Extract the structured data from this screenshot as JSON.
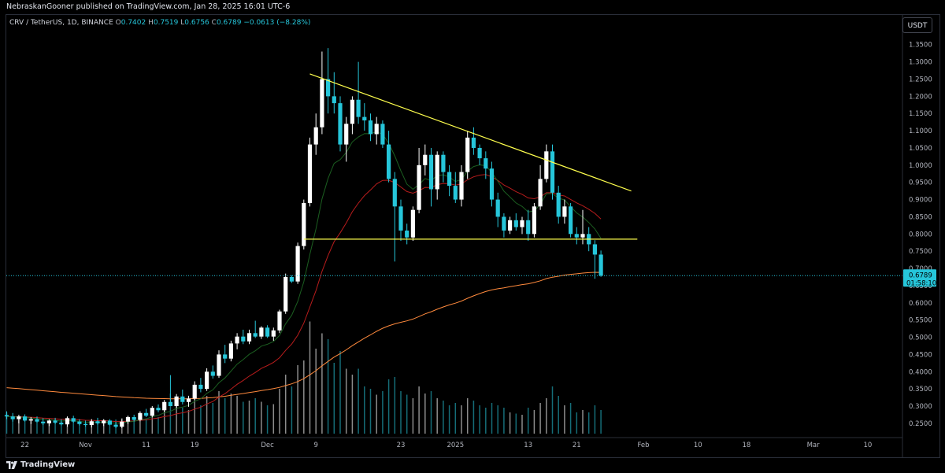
{
  "header": {
    "publish_text": "NebraskanGooner published on TradingView.com, Jan 28, 2025 16:01 UTC-6"
  },
  "symbol": {
    "name": "CRV / TetherUS, 1D, BINANCE",
    "o_label": "O",
    "o_value": "0.7402",
    "h_label": "H",
    "h_value": "0.7519",
    "l_label": "L",
    "l_value": "0.6756",
    "c_label": "C",
    "c_value": "0.6789",
    "change": "−0.0613 (−8.28%)"
  },
  "currency_button": "USDT",
  "brand": {
    "name": "TradingView",
    "icon": "tradingview-logo-icon"
  },
  "colors": {
    "up": "#ffffff",
    "down": "#26c6da",
    "trendline": "#ffff4d",
    "ema_green": "#1b5e20",
    "ema_red": "#b71c1c",
    "ma_orange": "#ff8a3d",
    "price_tag": "#26c6da"
  },
  "chart_data": {
    "type": "candlestick",
    "ylim": [
      0.22,
      1.37
    ],
    "y_ticks": [
      "1.3500",
      "1.3000",
      "1.2500",
      "1.2000",
      "1.1500",
      "1.1000",
      "1.0500",
      "1.0000",
      "0.9500",
      "0.9000",
      "0.8500",
      "0.8000",
      "0.7500",
      "0.7000",
      "0.6500",
      "0.6000",
      "0.5500",
      "0.5000",
      "0.4500",
      "0.4000",
      "0.3500",
      "0.3000",
      "0.2500"
    ],
    "y_tick_values": [
      1.35,
      1.3,
      1.25,
      1.2,
      1.15,
      1.1,
      1.05,
      1.0,
      0.95,
      0.9,
      0.85,
      0.8,
      0.75,
      0.7,
      0.65,
      0.6,
      0.55,
      0.5,
      0.45,
      0.4,
      0.35,
      0.3,
      0.25
    ],
    "x_ticks": [
      {
        "label": "22",
        "day": -9
      },
      {
        "label": "Nov",
        "day": 1
      },
      {
        "label": "11",
        "day": 11
      },
      {
        "label": "19",
        "day": 19
      },
      {
        "label": "Dec",
        "day": 31
      },
      {
        "label": "9",
        "day": 39
      },
      {
        "label": "23",
        "day": 53
      },
      {
        "label": "2025",
        "day": 62
      },
      {
        "label": "13",
        "day": 74
      },
      {
        "label": "21",
        "day": 82
      },
      {
        "label": "Feb",
        "day": 93
      },
      {
        "label": "10",
        "day": 102
      },
      {
        "label": "18",
        "day": 110
      },
      {
        "label": "Mar",
        "day": 121
      },
      {
        "label": "10",
        "day": 130
      }
    ],
    "last_price": {
      "label": "0.6789",
      "value": 0.6789,
      "countdown": "01:58:10"
    },
    "candles": [
      {
        "o": 0.274,
        "h": 0.285,
        "l": 0.262,
        "c": 0.27,
        "v": 0.18
      },
      {
        "o": 0.27,
        "h": 0.28,
        "l": 0.255,
        "c": 0.262,
        "v": 0.15
      },
      {
        "o": 0.262,
        "h": 0.275,
        "l": 0.25,
        "c": 0.27,
        "v": 0.12
      },
      {
        "o": 0.27,
        "h": 0.276,
        "l": 0.255,
        "c": 0.258,
        "v": 0.14
      },
      {
        "o": 0.258,
        "h": 0.268,
        "l": 0.248,
        "c": 0.262,
        "v": 0.11
      },
      {
        "o": 0.262,
        "h": 0.27,
        "l": 0.252,
        "c": 0.255,
        "v": 0.12
      },
      {
        "o": 0.255,
        "h": 0.265,
        "l": 0.245,
        "c": 0.25,
        "v": 0.1
      },
      {
        "o": 0.25,
        "h": 0.262,
        "l": 0.242,
        "c": 0.258,
        "v": 0.11
      },
      {
        "o": 0.258,
        "h": 0.266,
        "l": 0.248,
        "c": 0.252,
        "v": 0.12
      },
      {
        "o": 0.252,
        "h": 0.262,
        "l": 0.244,
        "c": 0.247,
        "v": 0.1
      },
      {
        "o": 0.247,
        "h": 0.27,
        "l": 0.24,
        "c": 0.265,
        "v": 0.14
      },
      {
        "o": 0.265,
        "h": 0.272,
        "l": 0.252,
        "c": 0.255,
        "v": 0.12
      },
      {
        "o": 0.255,
        "h": 0.262,
        "l": 0.244,
        "c": 0.248,
        "v": 0.11
      },
      {
        "o": 0.248,
        "h": 0.258,
        "l": 0.24,
        "c": 0.245,
        "v": 0.1
      },
      {
        "o": 0.245,
        "h": 0.262,
        "l": 0.238,
        "c": 0.256,
        "v": 0.12
      },
      {
        "o": 0.256,
        "h": 0.266,
        "l": 0.246,
        "c": 0.25,
        "v": 0.11
      },
      {
        "o": 0.25,
        "h": 0.262,
        "l": 0.242,
        "c": 0.258,
        "v": 0.12
      },
      {
        "o": 0.258,
        "h": 0.262,
        "l": 0.244,
        "c": 0.246,
        "v": 0.11
      },
      {
        "o": 0.246,
        "h": 0.254,
        "l": 0.236,
        "c": 0.24,
        "v": 0.12
      },
      {
        "o": 0.24,
        "h": 0.262,
        "l": 0.236,
        "c": 0.255,
        "v": 0.13
      },
      {
        "o": 0.255,
        "h": 0.272,
        "l": 0.248,
        "c": 0.268,
        "v": 0.15
      },
      {
        "o": 0.268,
        "h": 0.275,
        "l": 0.255,
        "c": 0.26,
        "v": 0.12
      },
      {
        "o": 0.26,
        "h": 0.285,
        "l": 0.256,
        "c": 0.28,
        "v": 0.16
      },
      {
        "o": 0.28,
        "h": 0.292,
        "l": 0.268,
        "c": 0.272,
        "v": 0.13
      },
      {
        "o": 0.272,
        "h": 0.3,
        "l": 0.268,
        "c": 0.295,
        "v": 0.18
      },
      {
        "o": 0.295,
        "h": 0.305,
        "l": 0.282,
        "c": 0.288,
        "v": 0.14
      },
      {
        "o": 0.288,
        "h": 0.318,
        "l": 0.282,
        "c": 0.312,
        "v": 0.2
      },
      {
        "o": 0.312,
        "h": 0.39,
        "l": 0.3,
        "c": 0.3,
        "v": 0.34
      },
      {
        "o": 0.3,
        "h": 0.335,
        "l": 0.294,
        "c": 0.328,
        "v": 0.26
      },
      {
        "o": 0.328,
        "h": 0.348,
        "l": 0.305,
        "c": 0.312,
        "v": 0.22
      },
      {
        "o": 0.312,
        "h": 0.33,
        "l": 0.298,
        "c": 0.322,
        "v": 0.2
      },
      {
        "o": 0.322,
        "h": 0.372,
        "l": 0.318,
        "c": 0.362,
        "v": 0.3
      },
      {
        "o": 0.362,
        "h": 0.382,
        "l": 0.34,
        "c": 0.35,
        "v": 0.24
      },
      {
        "o": 0.35,
        "h": 0.41,
        "l": 0.344,
        "c": 0.4,
        "v": 0.32
      },
      {
        "o": 0.4,
        "h": 0.418,
        "l": 0.38,
        "c": 0.388,
        "v": 0.26
      },
      {
        "o": 0.388,
        "h": 0.462,
        "l": 0.382,
        "c": 0.45,
        "v": 0.36
      },
      {
        "o": 0.45,
        "h": 0.478,
        "l": 0.425,
        "c": 0.438,
        "v": 0.3
      },
      {
        "o": 0.438,
        "h": 0.49,
        "l": 0.43,
        "c": 0.482,
        "v": 0.34
      },
      {
        "o": 0.482,
        "h": 0.512,
        "l": 0.465,
        "c": 0.502,
        "v": 0.32
      },
      {
        "o": 0.502,
        "h": 0.522,
        "l": 0.48,
        "c": 0.488,
        "v": 0.27
      },
      {
        "o": 0.488,
        "h": 0.522,
        "l": 0.48,
        "c": 0.512,
        "v": 0.28
      },
      {
        "o": 0.512,
        "h": 0.548,
        "l": 0.498,
        "c": 0.502,
        "v": 0.3
      },
      {
        "o": 0.502,
        "h": 0.532,
        "l": 0.495,
        "c": 0.528,
        "v": 0.27
      },
      {
        "o": 0.528,
        "h": 0.535,
        "l": 0.498,
        "c": 0.502,
        "v": 0.24
      },
      {
        "o": 0.502,
        "h": 0.528,
        "l": 0.49,
        "c": 0.52,
        "v": 0.25
      },
      {
        "o": 0.52,
        "h": 0.58,
        "l": 0.512,
        "c": 0.575,
        "v": 0.38
      },
      {
        "o": 0.575,
        "h": 0.685,
        "l": 0.568,
        "c": 0.675,
        "v": 0.5
      },
      {
        "o": 0.675,
        "h": 0.68,
        "l": 0.658,
        "c": 0.662,
        "v": 0.4
      },
      {
        "o": 0.662,
        "h": 0.775,
        "l": 0.655,
        "c": 0.765,
        "v": 0.58
      },
      {
        "o": 0.765,
        "h": 0.9,
        "l": 0.755,
        "c": 0.89,
        "v": 0.62
      },
      {
        "o": 0.89,
        "h": 1.08,
        "l": 0.88,
        "c": 1.06,
        "v": 0.95
      },
      {
        "o": 1.06,
        "h": 1.15,
        "l": 1.03,
        "c": 1.11,
        "v": 0.72
      },
      {
        "o": 1.11,
        "h": 1.33,
        "l": 1.09,
        "c": 1.25,
        "v": 0.85
      },
      {
        "o": 1.25,
        "h": 1.34,
        "l": 1.15,
        "c": 1.2,
        "v": 0.8
      },
      {
        "o": 1.2,
        "h": 1.27,
        "l": 1.15,
        "c": 1.18,
        "v": 0.6
      },
      {
        "o": 1.18,
        "h": 1.2,
        "l": 1.04,
        "c": 1.06,
        "v": 0.7
      },
      {
        "o": 1.06,
        "h": 1.14,
        "l": 1.01,
        "c": 1.12,
        "v": 0.55
      },
      {
        "o": 1.12,
        "h": 1.2,
        "l": 1.09,
        "c": 1.19,
        "v": 0.5
      },
      {
        "o": 1.19,
        "h": 1.3,
        "l": 1.12,
        "c": 1.14,
        "v": 0.55
      },
      {
        "o": 1.14,
        "h": 1.18,
        "l": 1.1,
        "c": 1.13,
        "v": 0.4
      },
      {
        "o": 1.13,
        "h": 1.15,
        "l": 1.07,
        "c": 1.09,
        "v": 0.38
      },
      {
        "o": 1.09,
        "h": 1.14,
        "l": 1.06,
        "c": 1.12,
        "v": 0.33
      },
      {
        "o": 1.12,
        "h": 1.13,
        "l": 1.05,
        "c": 1.06,
        "v": 0.36
      },
      {
        "o": 1.06,
        "h": 1.1,
        "l": 0.95,
        "c": 0.96,
        "v": 0.46
      },
      {
        "o": 0.96,
        "h": 0.98,
        "l": 0.72,
        "c": 0.88,
        "v": 0.48
      },
      {
        "o": 0.88,
        "h": 0.9,
        "l": 0.78,
        "c": 0.81,
        "v": 0.36
      },
      {
        "o": 0.81,
        "h": 0.83,
        "l": 0.77,
        "c": 0.79,
        "v": 0.33
      },
      {
        "o": 0.79,
        "h": 0.88,
        "l": 0.78,
        "c": 0.87,
        "v": 0.3
      },
      {
        "o": 0.87,
        "h": 1.05,
        "l": 0.86,
        "c": 1.0,
        "v": 0.4
      },
      {
        "o": 1.0,
        "h": 1.06,
        "l": 0.97,
        "c": 1.03,
        "v": 0.34
      },
      {
        "o": 1.03,
        "h": 1.05,
        "l": 0.88,
        "c": 0.93,
        "v": 0.36
      },
      {
        "o": 0.93,
        "h": 1.04,
        "l": 0.9,
        "c": 1.03,
        "v": 0.3
      },
      {
        "o": 1.03,
        "h": 1.04,
        "l": 0.95,
        "c": 0.98,
        "v": 0.28
      },
      {
        "o": 0.98,
        "h": 1.0,
        "l": 0.91,
        "c": 0.94,
        "v": 0.24
      },
      {
        "o": 0.94,
        "h": 0.98,
        "l": 0.89,
        "c": 0.9,
        "v": 0.26
      },
      {
        "o": 0.9,
        "h": 1.0,
        "l": 0.88,
        "c": 0.98,
        "v": 0.24
      },
      {
        "o": 0.98,
        "h": 1.1,
        "l": 0.96,
        "c": 1.08,
        "v": 0.3
      },
      {
        "o": 1.08,
        "h": 1.11,
        "l": 1.03,
        "c": 1.05,
        "v": 0.28
      },
      {
        "o": 1.05,
        "h": 1.06,
        "l": 1.0,
        "c": 1.02,
        "v": 0.24
      },
      {
        "o": 1.02,
        "h": 1.04,
        "l": 0.96,
        "c": 0.99,
        "v": 0.22
      },
      {
        "o": 0.99,
        "h": 1.01,
        "l": 0.88,
        "c": 0.9,
        "v": 0.26
      },
      {
        "o": 0.9,
        "h": 0.92,
        "l": 0.82,
        "c": 0.85,
        "v": 0.24
      },
      {
        "o": 0.85,
        "h": 0.86,
        "l": 0.79,
        "c": 0.81,
        "v": 0.22
      },
      {
        "o": 0.81,
        "h": 0.85,
        "l": 0.8,
        "c": 0.84,
        "v": 0.18
      },
      {
        "o": 0.84,
        "h": 0.86,
        "l": 0.81,
        "c": 0.82,
        "v": 0.17
      },
      {
        "o": 0.82,
        "h": 0.85,
        "l": 0.8,
        "c": 0.84,
        "v": 0.16
      },
      {
        "o": 0.84,
        "h": 0.87,
        "l": 0.78,
        "c": 0.8,
        "v": 0.22
      },
      {
        "o": 0.8,
        "h": 0.89,
        "l": 0.79,
        "c": 0.88,
        "v": 0.2
      },
      {
        "o": 0.88,
        "h": 1.0,
        "l": 0.87,
        "c": 0.96,
        "v": 0.26
      },
      {
        "o": 0.96,
        "h": 1.06,
        "l": 0.95,
        "c": 1.04,
        "v": 0.3
      },
      {
        "o": 1.04,
        "h": 1.06,
        "l": 0.9,
        "c": 0.92,
        "v": 0.4
      },
      {
        "o": 0.92,
        "h": 0.94,
        "l": 0.83,
        "c": 0.85,
        "v": 0.32
      },
      {
        "o": 0.85,
        "h": 0.9,
        "l": 0.83,
        "c": 0.88,
        "v": 0.24
      },
      {
        "o": 0.88,
        "h": 0.89,
        "l": 0.79,
        "c": 0.8,
        "v": 0.26
      },
      {
        "o": 0.8,
        "h": 0.82,
        "l": 0.77,
        "c": 0.79,
        "v": 0.18
      },
      {
        "o": 0.79,
        "h": 0.87,
        "l": 0.77,
        "c": 0.8,
        "v": 0.2
      },
      {
        "o": 0.8,
        "h": 0.82,
        "l": 0.75,
        "c": 0.77,
        "v": 0.18
      },
      {
        "o": 0.77,
        "h": 0.782,
        "l": 0.67,
        "c": 0.7402,
        "v": 0.24
      },
      {
        "o": 0.7402,
        "h": 0.7519,
        "l": 0.6756,
        "c": 0.6789,
        "v": 0.2
      }
    ],
    "trendlines": [
      {
        "name": "descending-trendline",
        "points": [
          {
            "day": 38,
            "price": 1.265
          },
          {
            "day": 91,
            "price": 0.925
          }
        ]
      },
      {
        "name": "support-line",
        "points": [
          {
            "day": 37,
            "price": 0.785
          },
          {
            "day": 92,
            "price": 0.785
          }
        ]
      }
    ]
  }
}
